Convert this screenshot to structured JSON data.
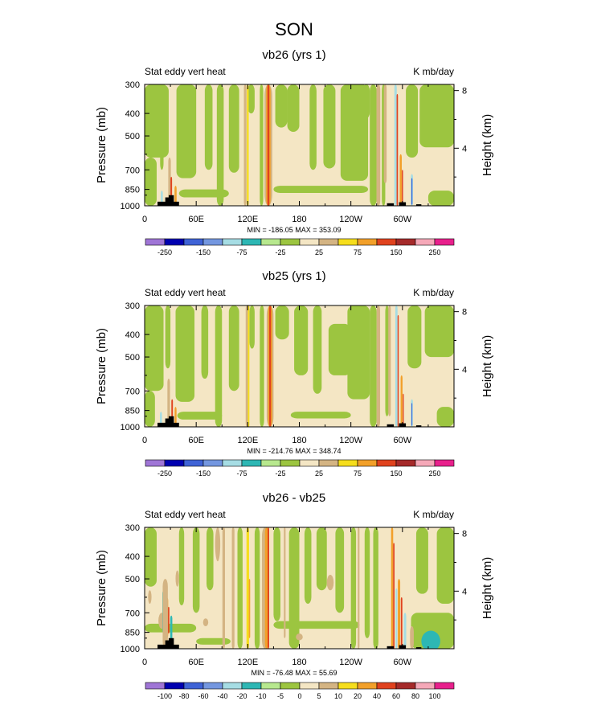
{
  "title": "SON",
  "colors": {
    "background": "#F4E6C4",
    "green": "#9CC540",
    "tan": "#D4B483",
    "yellow": "#F6DE1C",
    "orange": "#F2A02A",
    "red": "#E0421E",
    "darkred": "#A52A2A",
    "cyan": "#2DB7B4",
    "lightblue": "#A6DDE4",
    "blue": "#3F63D6",
    "land": "#000000"
  },
  "chart_data": [
    {
      "type": "heatmap",
      "title": "vb26 (yrs 1)",
      "left_label": "Stat eddy vert heat",
      "right_label": "K mb/day",
      "ylabel": "Pressure (mb)",
      "y2label": "Height (km)",
      "xticks": [
        "0",
        "60E",
        "120E",
        "180",
        "120W",
        "60W"
      ],
      "xtick_lon": [
        0,
        60,
        120,
        180,
        240,
        300
      ],
      "xlim": [
        0,
        360
      ],
      "yticks": [
        "300",
        "400",
        "500",
        "700",
        "850",
        "1000"
      ],
      "ytick_values": [
        300,
        400,
        500,
        700,
        850,
        1000
      ],
      "ylim": [
        300,
        1000
      ],
      "y2ticks": [
        "8",
        "4"
      ],
      "y2tick_values": [
        8,
        4
      ],
      "stats": "MIN = -186.05  MAX = 353.09",
      "colorbar": {
        "colors": [
          "#9F75D6",
          "#0000B0",
          "#3F63D6",
          "#7497E0",
          "#A6DDE4",
          "#2DB7B4",
          "#B7E88E",
          "#9CC540",
          "#F4E6C4",
          "#D4B483",
          "#F6DE1C",
          "#F2A02A",
          "#E0421E",
          "#A52A2A",
          "#F5A8B8",
          "#E8208C"
        ],
        "labels": [
          "-250",
          "",
          "-150",
          "",
          "-75",
          "",
          "-25",
          "",
          "25",
          "",
          "75",
          "",
          "150",
          "",
          "250"
        ]
      }
    },
    {
      "type": "heatmap",
      "title": "vb25 (yrs 1)",
      "left_label": "Stat eddy vert heat",
      "right_label": "K mb/day",
      "ylabel": "Pressure (mb)",
      "y2label": "Height (km)",
      "xticks": [
        "0",
        "60E",
        "120E",
        "180",
        "120W",
        "60W"
      ],
      "xtick_lon": [
        0,
        60,
        120,
        180,
        240,
        300
      ],
      "xlim": [
        0,
        360
      ],
      "yticks": [
        "300",
        "400",
        "500",
        "700",
        "850",
        "1000"
      ],
      "ytick_values": [
        300,
        400,
        500,
        700,
        850,
        1000
      ],
      "ylim": [
        300,
        1000
      ],
      "y2ticks": [
        "8",
        "4"
      ],
      "y2tick_values": [
        8,
        4
      ],
      "stats": "MIN = -214.76  MAX = 348.74",
      "colorbar": {
        "colors": [
          "#9F75D6",
          "#0000B0",
          "#3F63D6",
          "#7497E0",
          "#A6DDE4",
          "#2DB7B4",
          "#B7E88E",
          "#9CC540",
          "#F4E6C4",
          "#D4B483",
          "#F6DE1C",
          "#F2A02A",
          "#E0421E",
          "#A52A2A",
          "#F5A8B8",
          "#E8208C"
        ],
        "labels": [
          "-250",
          "",
          "-150",
          "",
          "-75",
          "",
          "-25",
          "",
          "25",
          "",
          "75",
          "",
          "150",
          "",
          "250"
        ]
      }
    },
    {
      "type": "heatmap",
      "title": "vb26 - vb25",
      "left_label": "Stat eddy vert heat",
      "right_label": "K mb/day",
      "ylabel": "Pressure (mb)",
      "y2label": "Height (km)",
      "xticks": [
        "0",
        "60E",
        "120E",
        "180",
        "120W",
        "60W"
      ],
      "xtick_lon": [
        0,
        60,
        120,
        180,
        240,
        300
      ],
      "xlim": [
        0,
        360
      ],
      "yticks": [
        "300",
        "400",
        "500",
        "700",
        "850",
        "1000"
      ],
      "ytick_values": [
        300,
        400,
        500,
        700,
        850,
        1000
      ],
      "ylim": [
        300,
        1000
      ],
      "y2ticks": [
        "8",
        "4"
      ],
      "y2tick_values": [
        8,
        4
      ],
      "stats": "MIN = -76.48  MAX = 55.69",
      "colorbar": {
        "colors": [
          "#9F75D6",
          "#0000B0",
          "#3F63D6",
          "#7497E0",
          "#A6DDE4",
          "#2DB7B4",
          "#B7E88E",
          "#9CC540",
          "#F4E6C4",
          "#D4B483",
          "#F6DE1C",
          "#F2A02A",
          "#E0421E",
          "#A52A2A",
          "#F5A8B8",
          "#E8208C"
        ],
        "labels": [
          "-100",
          "-80",
          "-60",
          "-40",
          "-20",
          "-10",
          "-5",
          "0",
          "5",
          "10",
          "20",
          "40",
          "60",
          "80",
          "100"
        ]
      }
    }
  ]
}
